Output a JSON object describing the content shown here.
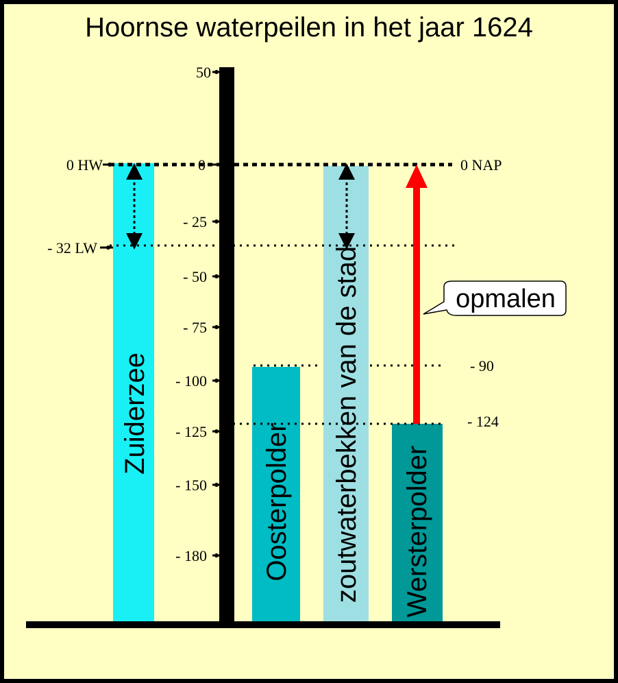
{
  "title": "Hoornse waterpeilen in het jaar 1624",
  "axis": {
    "ticks": [
      "50",
      "0",
      "- 25",
      "- 50",
      "- 75",
      "- 100",
      "- 125",
      "- 150",
      "- 180"
    ]
  },
  "levels": {
    "hw_label": "0 HW",
    "lw_label": "- 32 LW",
    "nap_label": "0  NAP",
    "oosterpolder_level_label": "- 90",
    "wersterpolder_level_label": "- 124"
  },
  "bars": [
    {
      "label": "Zuiderzee",
      "top_value": 0,
      "color": "#19f0f5"
    },
    {
      "label": "Oosterpolder",
      "top_value": -90,
      "color": "#00bcc4"
    },
    {
      "label": "zoutwaterbekken van de stad",
      "top_value": 0,
      "color": "#9edfe3"
    },
    {
      "label": "Wersterpolder",
      "top_value": -124,
      "color": "#019898"
    }
  ],
  "callout": {
    "label": "opmalen"
  },
  "colors": {
    "arrow": "#ff0000",
    "background": "#ffffc4"
  }
}
